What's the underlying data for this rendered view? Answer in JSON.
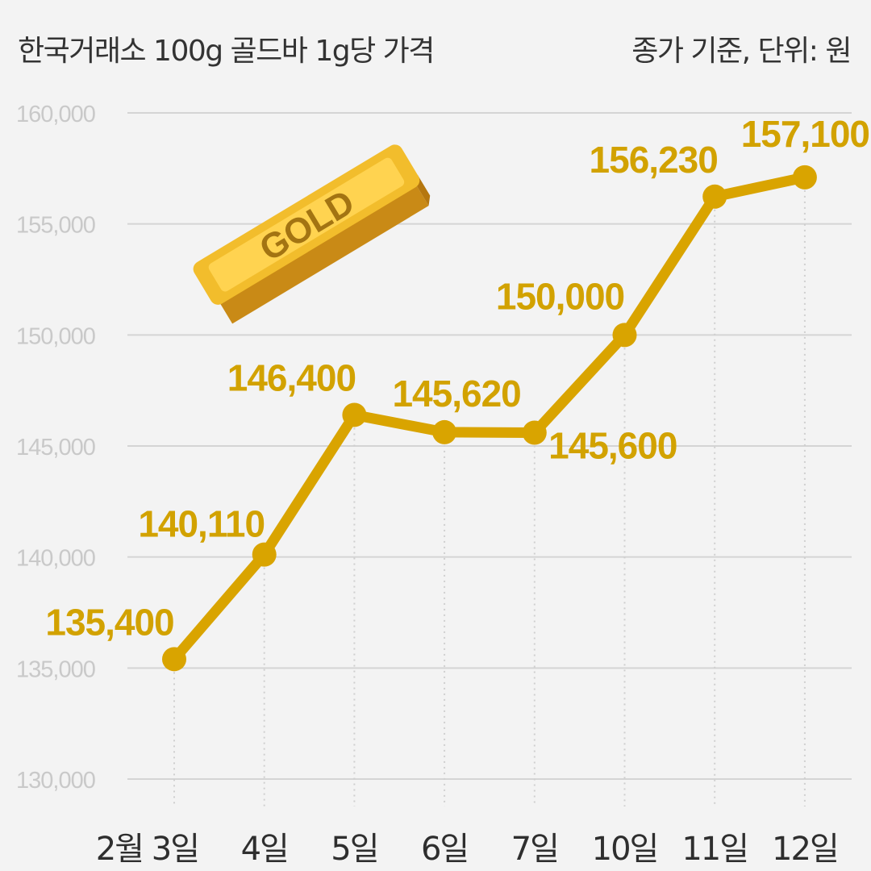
{
  "header": {
    "title": "한국거래소 100g 골드바 1g당 가격",
    "note": "종가 기준, 단위: 원"
  },
  "gold_bar": {
    "label": "GOLD"
  },
  "colors": {
    "line": "#d9a400",
    "label": "#d2a200",
    "grid": "#d4d4d4",
    "tick": "#c9c9c9"
  },
  "chart_data": {
    "type": "line",
    "title": "한국거래소 100g 골드바 1g당 가격",
    "subtitle": "종가 기준, 단위: 원",
    "categories": [
      "2월 3일",
      "4일",
      "5일",
      "6일",
      "7일",
      "10일",
      "11일",
      "12일"
    ],
    "series": [
      {
        "values": [
          135400,
          140110,
          146400,
          145620,
          145600,
          150000,
          156230,
          157100
        ],
        "labels": [
          "135,400",
          "140,110",
          "146,400",
          "145,620",
          "145,600",
          "150,000",
          "156,230",
          "157,100"
        ]
      }
    ],
    "ylim": [
      130000,
      160000
    ],
    "yticks": [
      130000,
      135000,
      140000,
      145000,
      150000,
      155000,
      160000
    ],
    "ytick_labels": [
      "130,000",
      "135,000",
      "140,000",
      "145,000",
      "150,000",
      "155,000",
      "160,000"
    ],
    "grid": true,
    "legend": "none"
  }
}
